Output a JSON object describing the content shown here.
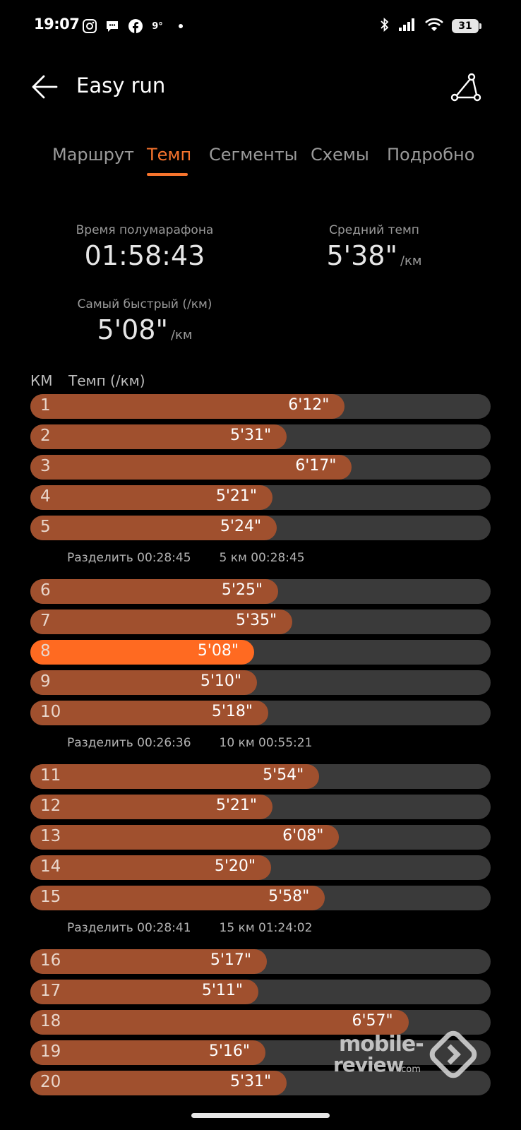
{
  "status_bar": {
    "time": "19:07",
    "weather_temp": "9°",
    "battery": "31",
    "icons": [
      "instagram-icon",
      "chat-icon",
      "facebook-icon",
      "weather-icon",
      "bluetooth-icon",
      "signal-icon",
      "wifi-icon",
      "battery-icon"
    ]
  },
  "header": {
    "title": "Easy run",
    "back_icon": "arrow-left-icon",
    "route_icon": "route-icon"
  },
  "tabs": [
    {
      "label": "Маршрут",
      "active": false
    },
    {
      "label": "Темп",
      "active": true
    },
    {
      "label": "Сегменты",
      "active": false
    },
    {
      "label": "Схемы",
      "active": false
    },
    {
      "label": "Подробно",
      "active": false
    }
  ],
  "stats": {
    "half_marathon_label": "Время полумарафона",
    "half_marathon_value": "01:58:43",
    "avg_pace_label": "Средний темп",
    "avg_pace_value": "5'38\"",
    "avg_pace_unit": "/км",
    "fastest_label": "Самый быстрый (/км)",
    "fastest_value": "5'08\"",
    "fastest_unit": "/км"
  },
  "table": {
    "col_km": "КМ",
    "col_pace": "Темп (/км)",
    "accent_color": "#a0502e",
    "fastest_color": "#ff6a21",
    "track_color": "#3a3a3a"
  },
  "chart_data": {
    "type": "bar",
    "xlabel": "КМ",
    "ylabel": "Темп (/км)",
    "categories": [
      "1",
      "2",
      "3",
      "4",
      "5",
      "6",
      "7",
      "8",
      "9",
      "10",
      "11",
      "12",
      "13",
      "14",
      "15",
      "16",
      "17",
      "18",
      "19",
      "20"
    ],
    "values": [
      "6'12\"",
      "5'31\"",
      "6'17\"",
      "5'21\"",
      "5'24\"",
      "5'25\"",
      "5'35\"",
      "5'08\"",
      "5'10\"",
      "5'18\"",
      "5'54\"",
      "5'21\"",
      "6'08\"",
      "5'20\"",
      "5'58\"",
      "5'17\"",
      "5'11\"",
      "6'57\"",
      "5'16\"",
      "5'31\""
    ],
    "values_seconds": [
      372,
      331,
      377,
      321,
      324,
      325,
      335,
      308,
      310,
      318,
      354,
      321,
      368,
      320,
      358,
      317,
      311,
      417,
      316,
      331
    ],
    "fastest_index": 7,
    "splits": [
      {
        "after": 5,
        "split": "Разделить 00:28:45",
        "cumulative": "5 км 00:28:45"
      },
      {
        "after": 10,
        "split": "Разделить 00:26:36",
        "cumulative": "10 км 00:55:21"
      },
      {
        "after": 15,
        "split": "Разделить 00:28:41",
        "cumulative": "15 км 01:24:02"
      }
    ]
  },
  "watermark": {
    "line1": "mobile-",
    "line2": "review",
    "line3": ".com"
  }
}
